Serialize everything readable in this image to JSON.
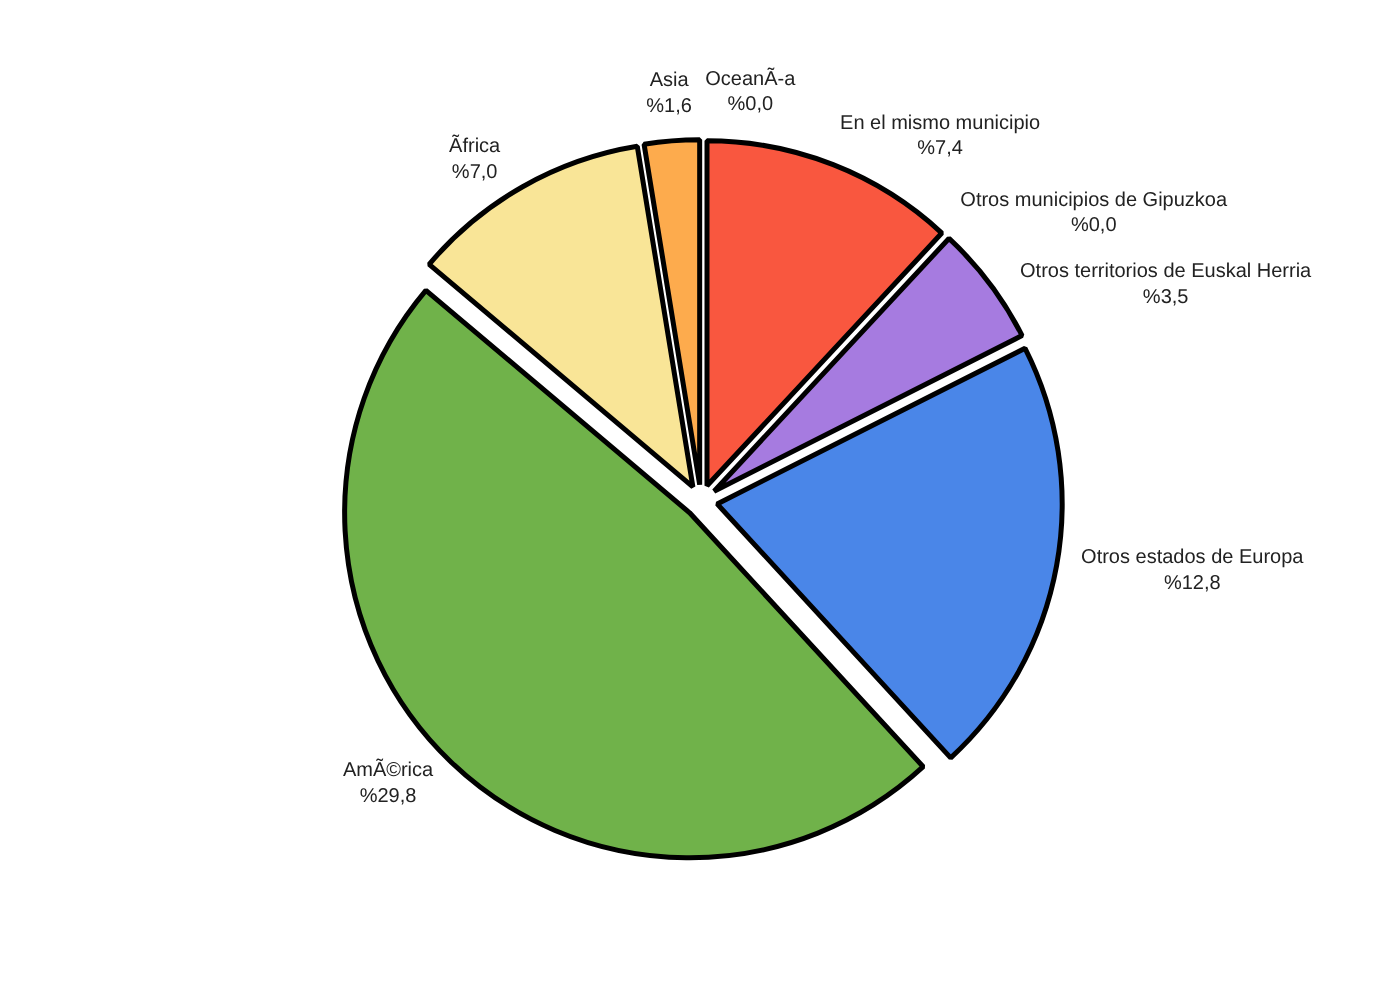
{
  "chart_data": {
    "type": "pie",
    "categories": [
      "En el mismo municipio",
      "Otros municipios de Gipuzkoa",
      "Otros territorios de Euskal Herria",
      "Otros estados de Europa",
      "AmÃ©rica",
      "Ãfrica",
      "Asia",
      "OceanÃ-a"
    ],
    "values": [
      7.4,
      0.0,
      3.5,
      12.8,
      29.8,
      7.0,
      1.6,
      0.0
    ],
    "value_labels": [
      "%7,4",
      "%0,0",
      "%3,5",
      "%12,8",
      "%29,8",
      "%7,0",
      "%1,6",
      "%0,0"
    ],
    "colors": [
      "#f9573f",
      "#222222",
      "#a67be0",
      "#4a86e8",
      "#70b24a",
      "#f9e597",
      "#fdab4d",
      "#222222"
    ]
  }
}
